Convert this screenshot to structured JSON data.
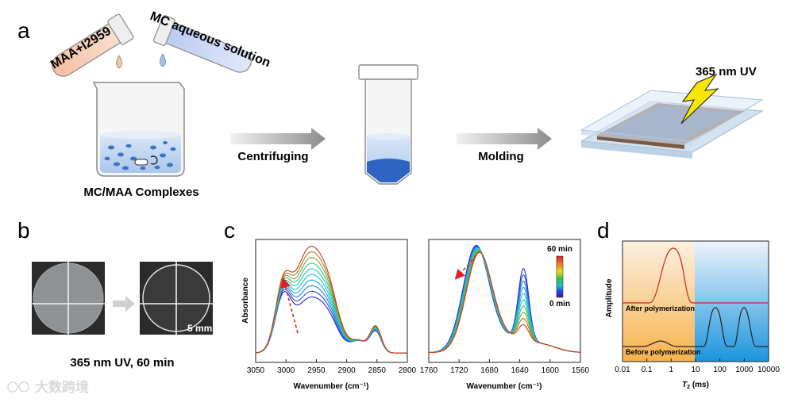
{
  "panels": {
    "a": {
      "letter": "a",
      "tube1_label": "MAA+I2959",
      "tube2_label": "MC aqueous solution",
      "beaker_caption": "MC/MAA Complexes",
      "arrow1_label": "Centrifuging",
      "arrow2_label": "Molding",
      "uv_label": "365 nm UV"
    },
    "b": {
      "letter": "b",
      "scale_label": "5 mm",
      "caption": "365 nm UV, 60 min"
    },
    "c": {
      "letter": "c",
      "ylabel": "Absorbance",
      "left_xlabel": "Wavenumber (cm⁻¹)",
      "right_xlabel": "Wavenumber (cm⁻¹)",
      "left_ticks": [
        "3050",
        "3000",
        "2950",
        "2900",
        "2850",
        "2800"
      ],
      "right_ticks": [
        "1760",
        "1720",
        "1680",
        "1640",
        "1600",
        "1560"
      ],
      "colorbar_top": "60 min",
      "colorbar_bottom": "0 min"
    },
    "d": {
      "letter": "d",
      "ylabel": "Amplitude",
      "xlabel": "T",
      "xlabel_sub": "2",
      "xlabel_unit": " (ms)",
      "ticks": [
        "0.01",
        "0.1",
        "1",
        "10",
        "100",
        "1000",
        "10000"
      ],
      "label_after": "After polymerization",
      "label_before": "Before polymerization"
    }
  },
  "watermark": "大数跨境",
  "colors": {
    "arrow": "#9a9a9a",
    "uv_bolt": "#f5e400",
    "orange_region": "#f7c070",
    "blue_region": "#2a9ee0",
    "after_curve": "#d42020",
    "before_curve": "#222222"
  },
  "chart_data": [
    {
      "type": "line",
      "title": "",
      "xlabel": "Wavenumber (cm⁻¹)",
      "ylabel": "Absorbance",
      "xlim": [
        3050,
        2800
      ],
      "peaks_cm": [
        3005,
        2970,
        2935,
        2850
      ],
      "series_count": 10,
      "trend": "absorbance rises with UV time 0 → 60 min"
    },
    {
      "type": "line",
      "title": "",
      "xlabel": "Wavenumber (cm⁻¹)",
      "ylabel": "Absorbance",
      "xlim": [
        1760,
        1560
      ],
      "peaks_cm": [
        1698,
        1635
      ],
      "series_count": 10,
      "trend": "C=C peak at 1635 decreases, C=O peak shifts to lower wavenumber with UV time"
    },
    {
      "type": "line",
      "title": "",
      "xlabel": "T2 (ms)",
      "ylabel": "Amplitude",
      "xscale": "log",
      "xlim": [
        0.01,
        10000
      ],
      "series": [
        {
          "name": "After polymerization",
          "peaks_ms": [
            1
          ]
        },
        {
          "name": "Before polymerization",
          "peaks_ms": [
            0.5,
            50,
            1000
          ]
        }
      ]
    }
  ]
}
